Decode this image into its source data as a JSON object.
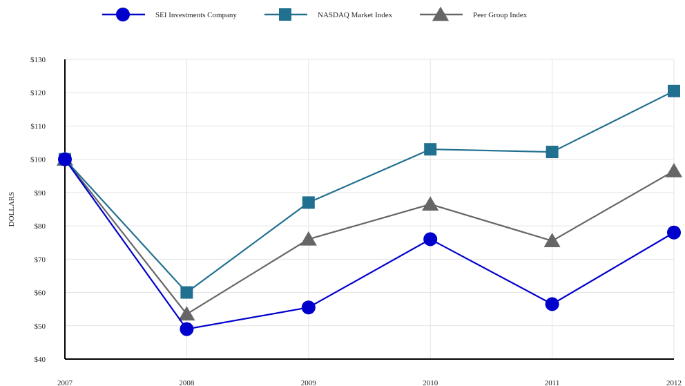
{
  "chart_data": {
    "type": "line",
    "title": "",
    "xlabel": "",
    "ylabel": "DOLLARS",
    "x": [
      "2007",
      "2008",
      "2009",
      "2010",
      "2011",
      "2012"
    ],
    "ylim": [
      40,
      130
    ],
    "y_ticks": [
      40,
      50,
      60,
      70,
      80,
      90,
      100,
      110,
      120,
      130
    ],
    "y_tick_labels": [
      "$40",
      "$50",
      "$60",
      "$70",
      "$80",
      "$90",
      "$100",
      "$110",
      "$120",
      "$130"
    ],
    "grid": true,
    "legend_position": "top",
    "series": [
      {
        "name": "SEI Investments Company",
        "color": "#0000cc",
        "marker": "circle",
        "values": [
          100,
          49,
          55.5,
          76,
          56.5,
          78
        ]
      },
      {
        "name": "NASDAQ Market Index",
        "color": "#22708f",
        "marker": "square",
        "values": [
          100,
          60,
          87,
          103,
          102.2,
          120.5
        ]
      },
      {
        "name": "Peer Group Index",
        "color": "#666666",
        "marker": "triangle",
        "values": [
          100,
          53.5,
          76,
          86.5,
          75.5,
          96.5
        ]
      }
    ]
  }
}
